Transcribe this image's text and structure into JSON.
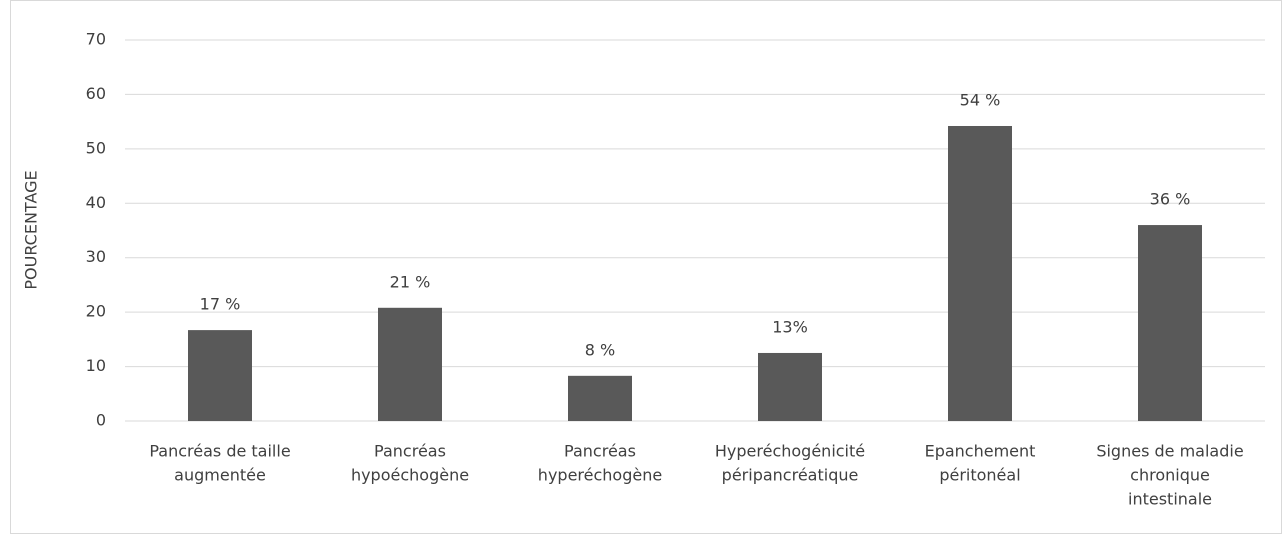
{
  "chart_data": {
    "type": "bar",
    "y_label": "POURCENTAGE",
    "categories": [
      [
        "Pancréas de taille",
        "augmentée"
      ],
      [
        "Pancréas",
        "hypoéchogène"
      ],
      [
        "Pancréas",
        "hyperéchogène"
      ],
      [
        "Hyperéchogénicité",
        "péripancréatique"
      ],
      [
        "Epanchement",
        "péritonéal"
      ],
      [
        "Signes de maladie",
        "chronique",
        "intestinale"
      ]
    ],
    "values": [
      16.7,
      20.8,
      8.3,
      12.5,
      54.2,
      36
    ],
    "value_labels": [
      "17 %",
      "21 %",
      "8 %",
      "13%",
      "54 %",
      "36 %"
    ],
    "color": "#595959",
    "ylim": [
      0,
      70
    ],
    "yticks": [
      0,
      10,
      20,
      30,
      40,
      50,
      60,
      70
    ],
    "grid": true
  }
}
